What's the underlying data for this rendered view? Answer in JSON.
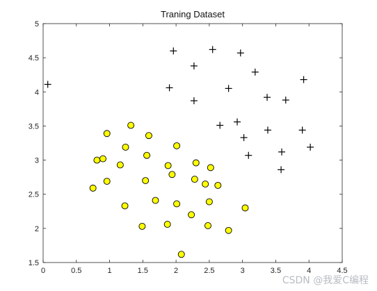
{
  "chart_data": {
    "type": "scatter",
    "title": "Traning Dataset",
    "xlabel": "",
    "ylabel": "",
    "xlim": [
      0,
      4.5
    ],
    "ylim": [
      1.5,
      5
    ],
    "x_ticks": [
      "0",
      "0.5",
      "1",
      "1.5",
      "2",
      "2.5",
      "3",
      "3.5",
      "4",
      "4.5"
    ],
    "y_ticks": [
      "1.5",
      "2",
      "2.5",
      "3",
      "3.5",
      "4",
      "4.5",
      "5"
    ],
    "grid": false,
    "legend": "none",
    "series": [
      {
        "marker": "circle",
        "color": "#ffff00",
        "edge_color": "#000000",
        "points": [
          [
            0.96,
            3.39
          ],
          [
            1.32,
            3.51
          ],
          [
            1.59,
            3.36
          ],
          [
            2.01,
            3.21
          ],
          [
            1.24,
            3.19
          ],
          [
            0.81,
            3.0
          ],
          [
            0.9,
            3.02
          ],
          [
            1.56,
            3.07
          ],
          [
            1.16,
            2.93
          ],
          [
            1.88,
            2.92
          ],
          [
            2.3,
            2.96
          ],
          [
            2.52,
            2.89
          ],
          [
            1.94,
            2.79
          ],
          [
            1.54,
            2.7
          ],
          [
            0.96,
            2.69
          ],
          [
            0.75,
            2.59
          ],
          [
            2.28,
            2.72
          ],
          [
            2.44,
            2.65
          ],
          [
            2.63,
            2.63
          ],
          [
            1.69,
            2.41
          ],
          [
            2.5,
            2.39
          ],
          [
            2.01,
            2.36
          ],
          [
            1.23,
            2.33
          ],
          [
            3.04,
            2.3
          ],
          [
            2.23,
            2.2
          ],
          [
            1.87,
            2.06
          ],
          [
            1.49,
            2.03
          ],
          [
            2.48,
            2.04
          ],
          [
            2.79,
            1.97
          ],
          [
            2.08,
            1.62
          ]
        ]
      },
      {
        "marker": "plus",
        "color": "#000000",
        "points": [
          [
            0.07,
            4.11
          ],
          [
            1.96,
            4.6
          ],
          [
            2.55,
            4.62
          ],
          [
            2.97,
            4.57
          ],
          [
            2.27,
            4.38
          ],
          [
            3.19,
            4.29
          ],
          [
            3.92,
            4.18
          ],
          [
            1.9,
            4.06
          ],
          [
            2.79,
            4.05
          ],
          [
            3.37,
            3.92
          ],
          [
            2.27,
            3.87
          ],
          [
            3.65,
            3.88
          ],
          [
            2.66,
            3.51
          ],
          [
            2.92,
            3.56
          ],
          [
            3.38,
            3.44
          ],
          [
            3.9,
            3.44
          ],
          [
            3.02,
            3.33
          ],
          [
            4.02,
            3.19
          ],
          [
            3.59,
            3.12
          ],
          [
            3.09,
            3.07
          ],
          [
            3.58,
            2.86
          ]
        ]
      }
    ]
  },
  "watermark": "CSDN @我爱C编程"
}
